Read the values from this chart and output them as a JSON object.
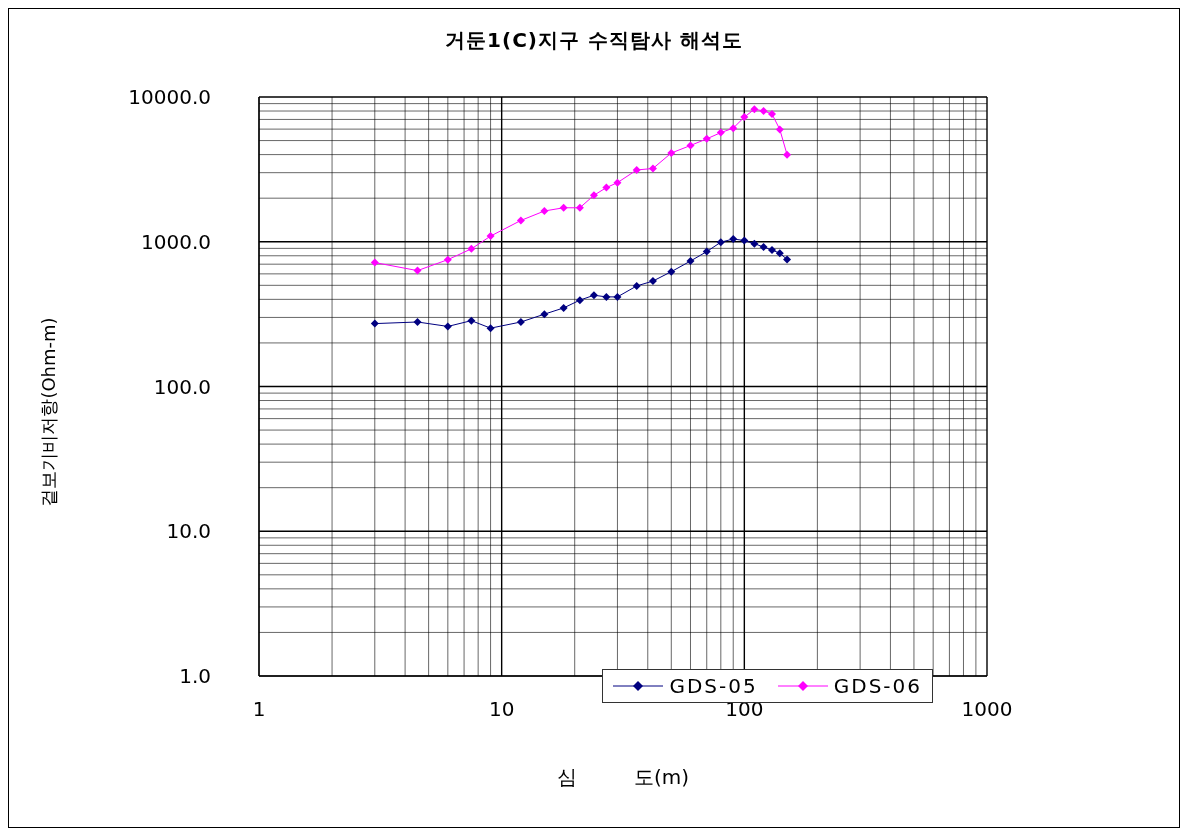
{
  "chart_data": {
    "type": "line",
    "title": "거둔1(C)지구 수직탐사 해석도",
    "xlabel": "심         도(m)",
    "ylabel": "겉보기비저항(Ohm-m)",
    "x": [
      3,
      4.5,
      6,
      7.5,
      9,
      12,
      15,
      18,
      21,
      24,
      27,
      30,
      36,
      42,
      50,
      60,
      70,
      80,
      90,
      100,
      110,
      120,
      130,
      140,
      150
    ],
    "series": [
      {
        "name": "GDS-05",
        "color": "#000080",
        "values": [
          272,
          279,
          260,
          285,
          253,
          279,
          316,
          349,
          395,
          427,
          416,
          416,
          495,
          535,
          621,
          736,
          855,
          993,
          1045,
          1019,
          970,
          920,
          877,
          834,
          755
        ]
      },
      {
        "name": "GDS-06",
        "color": "#ff00ff",
        "values": [
          718,
          632,
          752,
          893,
          1094,
          1403,
          1631,
          1717,
          1717,
          2094,
          2366,
          2559,
          3133,
          3206,
          4102,
          4624,
          5140,
          5675,
          6093,
          7261,
          8226,
          8017,
          7631,
          5975,
          3998
        ]
      }
    ],
    "log": "xy",
    "xlim": [
      1,
      1000
    ],
    "xticks": [
      1,
      10,
      100,
      1000
    ],
    "ylim": [
      1,
      10000
    ],
    "yticks": [
      {
        "value": 1,
        "label": "1.0"
      },
      {
        "value": 10,
        "label": "10.0"
      },
      {
        "value": 100,
        "label": "100.0"
      },
      {
        "value": 1000,
        "label": "1000.0"
      },
      {
        "value": 10000,
        "label": "10000.0"
      }
    ],
    "grid": true,
    "legend": "bottom right",
    "marker": "diamond",
    "line_style": "solid"
  }
}
